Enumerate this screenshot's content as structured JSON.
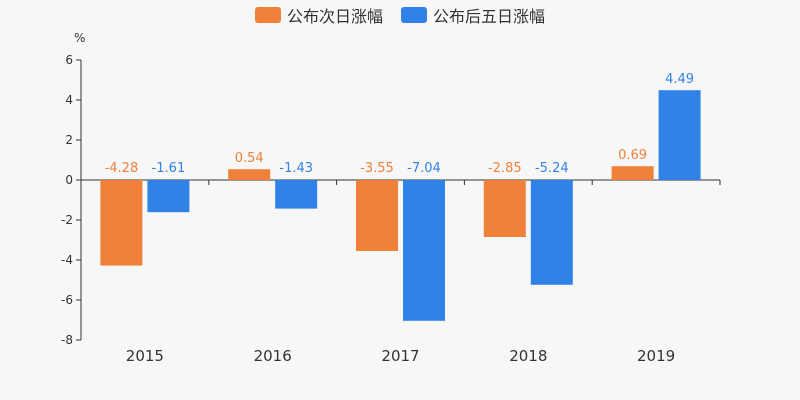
{
  "chart_data": {
    "type": "bar",
    "unit": "%",
    "categories": [
      "2015",
      "2016",
      "2017",
      "2018",
      "2019"
    ],
    "series": [
      {
        "name": "公布次日涨幅",
        "color": "#f0813a",
        "values": [
          -4.28,
          0.54,
          -3.55,
          -2.85,
          0.69
        ],
        "labels": [
          "-4.28",
          "0.54",
          "-3.55",
          "-2.85",
          "0.69"
        ]
      },
      {
        "name": "公布后五日涨幅",
        "color": "#3182e6",
        "values": [
          -1.61,
          -1.43,
          -7.04,
          -5.24,
          4.49
        ],
        "labels": [
          "-1.61",
          "-1.43",
          "-7.04",
          "-5.24",
          "4.49"
        ]
      }
    ],
    "ylim": [
      -8,
      6
    ],
    "yticks": [
      6,
      4,
      2,
      0,
      -2,
      -4,
      -6,
      -8
    ],
    "ytick_labels": [
      "6",
      "4",
      "2",
      "0",
      "-2",
      "-4",
      "-6",
      "-8"
    ],
    "legend_position": "top-center",
    "grid": false
  }
}
